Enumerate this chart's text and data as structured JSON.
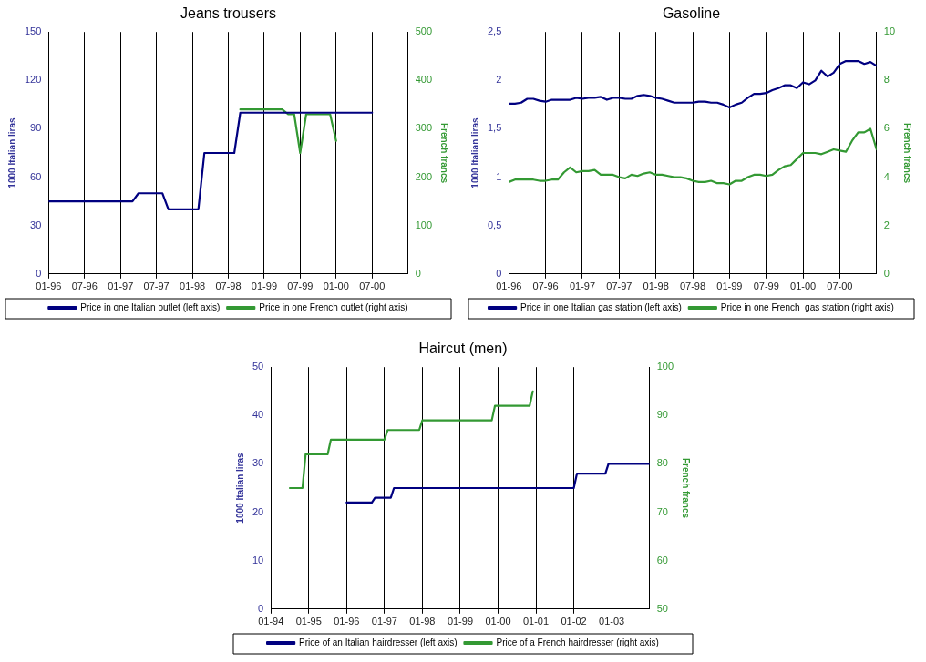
{
  "chart_data": [
    {
      "type": "line",
      "title": "Jeans trousers",
      "ylabel": "1000 Italian liras",
      "y2label": "French francs",
      "xlim": [
        "1996-01",
        "2001-01"
      ],
      "xticks": [
        {
          "value": "1996-01",
          "label": "01-96"
        },
        {
          "value": "1996-07",
          "label": "07-96"
        },
        {
          "value": "1997-01",
          "label": "01-97"
        },
        {
          "value": "1997-07",
          "label": "07-97"
        },
        {
          "value": "1998-01",
          "label": "01-98"
        },
        {
          "value": "1998-07",
          "label": "07-98"
        },
        {
          "value": "1999-01",
          "label": "01-99"
        },
        {
          "value": "1999-07",
          "label": "07-99"
        },
        {
          "value": "2000-01",
          "label": "01-00"
        },
        {
          "value": "2000-07",
          "label": "07-00"
        }
      ],
      "ylim": [
        0,
        150
      ],
      "yticks": [
        0,
        30,
        60,
        90,
        120,
        150
      ],
      "y2lim": [
        0,
        500
      ],
      "y2ticks": [
        0,
        100,
        200,
        300,
        400,
        500
      ],
      "grid": "x",
      "legend": "bottom",
      "marker": "none",
      "line_style": "solid",
      "series": [
        {
          "name": "Price in one Italian outlet (left axis)",
          "color": "#000080",
          "x": [
            "1996-01",
            "1997-03",
            "1997-04",
            "1997-08",
            "1997-09",
            "1998-02",
            "1998-03",
            "1998-08",
            "1998-09",
            "2000-07"
          ],
          "values": [
            45,
            45,
            50,
            50,
            40,
            40,
            75,
            75,
            100,
            100
          ]
        },
        {
          "name": "Price in one French outlet (right axis)",
          "color": "#339933",
          "axis": "y2",
          "x": [
            "1998-09",
            "1999-04",
            "1999-05",
            "1999-06",
            "1999-07",
            "1999-08",
            "1999-12",
            "2000-01"
          ],
          "values": [
            340,
            340,
            330,
            330,
            250,
            330,
            330,
            275
          ]
        }
      ]
    },
    {
      "type": "line",
      "title": "Gasoline",
      "ylabel": "1000 Italian liras",
      "y2label": "French francs",
      "xlim": [
        "1996-01",
        "2001-01"
      ],
      "xticks": [
        {
          "value": "1996-01",
          "label": "01-96"
        },
        {
          "value": "1996-07",
          "label": "07-96"
        },
        {
          "value": "1997-01",
          "label": "01-97"
        },
        {
          "value": "1997-07",
          "label": "07-97"
        },
        {
          "value": "1998-01",
          "label": "01-98"
        },
        {
          "value": "1998-07",
          "label": "07-98"
        },
        {
          "value": "1999-01",
          "label": "01-99"
        },
        {
          "value": "1999-07",
          "label": "07-99"
        },
        {
          "value": "2000-01",
          "label": "01-00"
        },
        {
          "value": "2000-07",
          "label": "07-00"
        }
      ],
      "ylim": [
        0,
        2.5
      ],
      "yticks": [
        0,
        {
          "value": 0.5,
          "label": "0,5"
        },
        1,
        {
          "value": 1.5,
          "label": "1,5"
        },
        2,
        {
          "value": 2.5,
          "label": "2,5"
        }
      ],
      "y2lim": [
        0,
        10
      ],
      "y2ticks": [
        0,
        2,
        4,
        6,
        8,
        10
      ],
      "grid": "x",
      "legend": "bottom",
      "marker": "none",
      "line_style": "solid",
      "series": [
        {
          "name": "Price in one Italian gas station (left axis)",
          "color": "#000080",
          "x": [
            "1996-01",
            "1996-02",
            "1996-03",
            "1996-04",
            "1996-05",
            "1996-06",
            "1996-07",
            "1996-08",
            "1996-09",
            "1996-10",
            "1996-11",
            "1996-12",
            "1997-01",
            "1997-02",
            "1997-03",
            "1997-04",
            "1997-05",
            "1997-06",
            "1997-07",
            "1997-08",
            "1997-09",
            "1997-10",
            "1997-11",
            "1997-12",
            "1998-01",
            "1998-02",
            "1998-03",
            "1998-04",
            "1998-05",
            "1998-06",
            "1998-07",
            "1998-08",
            "1998-09",
            "1998-10",
            "1998-11",
            "1998-12",
            "1999-01",
            "1999-02",
            "1999-03",
            "1999-04",
            "1999-05",
            "1999-06",
            "1999-07",
            "1999-08",
            "1999-09",
            "1999-10",
            "1999-11",
            "1999-12",
            "2000-01",
            "2000-02",
            "2000-03",
            "2000-04",
            "2000-05",
            "2000-06",
            "2000-07",
            "2000-08",
            "2000-09",
            "2000-10",
            "2000-11",
            "2000-12",
            "2001-01"
          ],
          "values": [
            1.76,
            1.76,
            1.77,
            1.81,
            1.81,
            1.79,
            1.78,
            1.8,
            1.8,
            1.8,
            1.8,
            1.82,
            1.81,
            1.82,
            1.82,
            1.83,
            1.8,
            1.82,
            1.82,
            1.81,
            1.81,
            1.84,
            1.85,
            1.84,
            1.82,
            1.81,
            1.79,
            1.77,
            1.77,
            1.77,
            1.77,
            1.78,
            1.78,
            1.77,
            1.77,
            1.75,
            1.72,
            1.75,
            1.77,
            1.82,
            1.86,
            1.86,
            1.87,
            1.9,
            1.92,
            1.95,
            1.95,
            1.92,
            1.98,
            1.96,
            2.0,
            2.1,
            2.04,
            2.08,
            2.17,
            2.2,
            2.2,
            2.2,
            2.17,
            2.19,
            2.15
          ]
        },
        {
          "name": "Price in one French  gas station (right axis)",
          "color": "#339933",
          "axis": "y2",
          "x": [
            "1996-01",
            "1996-02",
            "1996-03",
            "1996-04",
            "1996-05",
            "1996-06",
            "1996-07",
            "1996-08",
            "1996-09",
            "1996-10",
            "1996-11",
            "1996-12",
            "1997-01",
            "1997-02",
            "1997-03",
            "1997-04",
            "1997-05",
            "1997-06",
            "1997-07",
            "1997-08",
            "1997-09",
            "1997-10",
            "1997-11",
            "1997-12",
            "1998-01",
            "1998-02",
            "1998-03",
            "1998-04",
            "1998-05",
            "1998-06",
            "1998-07",
            "1998-08",
            "1998-09",
            "1998-10",
            "1998-11",
            "1998-12",
            "1999-01",
            "1999-02",
            "1999-03",
            "1999-04",
            "1999-05",
            "1999-06",
            "1999-07",
            "1999-08",
            "1999-09",
            "1999-10",
            "1999-11",
            "1999-12",
            "2000-01",
            "2000-02",
            "2000-03",
            "2000-04",
            "2000-05",
            "2000-06",
            "2000-07",
            "2000-08",
            "2000-09",
            "2000-10",
            "2000-11",
            "2000-12",
            "2001-01"
          ],
          "values": [
            3.8,
            3.9,
            3.9,
            3.9,
            3.9,
            3.85,
            3.85,
            3.9,
            3.9,
            4.2,
            4.4,
            4.2,
            4.25,
            4.25,
            4.3,
            4.1,
            4.1,
            4.1,
            4.0,
            3.95,
            4.1,
            4.05,
            4.15,
            4.2,
            4.1,
            4.1,
            4.05,
            4.0,
            4.0,
            3.95,
            3.85,
            3.8,
            3.8,
            3.85,
            3.75,
            3.75,
            3.7,
            3.85,
            3.85,
            4.0,
            4.1,
            4.1,
            4.05,
            4.1,
            4.3,
            4.45,
            4.5,
            4.75,
            5.0,
            5.0,
            5.0,
            4.95,
            5.05,
            5.15,
            5.1,
            5.05,
            5.5,
            5.85,
            5.85,
            6.0,
            5.15
          ]
        }
      ]
    },
    {
      "type": "line",
      "title": "Haircut (men)",
      "ylabel": "1000 Italian liras",
      "y2label": "French francs",
      "xlim": [
        "1994-01",
        "2004-01"
      ],
      "xticks": [
        {
          "value": "1994-01",
          "label": "01-94"
        },
        {
          "value": "1995-01",
          "label": "01-95"
        },
        {
          "value": "1996-01",
          "label": "01-96"
        },
        {
          "value": "1997-01",
          "label": "01-97"
        },
        {
          "value": "1998-01",
          "label": "01-98"
        },
        {
          "value": "1999-01",
          "label": "01-99"
        },
        {
          "value": "2000-01",
          "label": "01-00"
        },
        {
          "value": "2001-01",
          "label": "01-01"
        },
        {
          "value": "2002-01",
          "label": "01-02"
        },
        {
          "value": "2003-01",
          "label": "01-03"
        }
      ],
      "ylim": [
        0,
        50
      ],
      "yticks": [
        0,
        10,
        20,
        30,
        40,
        50
      ],
      "y2lim": [
        50,
        100
      ],
      "y2ticks": [
        50,
        60,
        70,
        80,
        90,
        100
      ],
      "grid": "x",
      "legend": "bottom",
      "marker": "none",
      "line_style": "solid",
      "series": [
        {
          "name": "Price of an Italian hairdresser (left axis)",
          "color": "#000080",
          "x": [
            "1996-01",
            "1996-09",
            "1996-10",
            "1997-03",
            "1997-04",
            "2002-01",
            "2002-02",
            "2002-11",
            "2002-12",
            "2004-01"
          ],
          "values": [
            22,
            22,
            23,
            23,
            25,
            25,
            28,
            28,
            30,
            30
          ]
        },
        {
          "name": "Price of a French hairdresser (right axis)",
          "color": "#339933",
          "axis": "y2",
          "x": [
            "1994-07",
            "1994-11",
            "1994-12",
            "1995-07",
            "1995-08",
            "1997-01",
            "1997-02",
            "1997-12",
            "1998-01",
            "1999-11",
            "1999-12",
            "2000-11",
            "2000-12"
          ],
          "values": [
            75,
            75,
            82,
            82,
            85,
            85,
            87,
            87,
            89,
            89,
            92,
            92,
            95
          ]
        }
      ]
    }
  ]
}
